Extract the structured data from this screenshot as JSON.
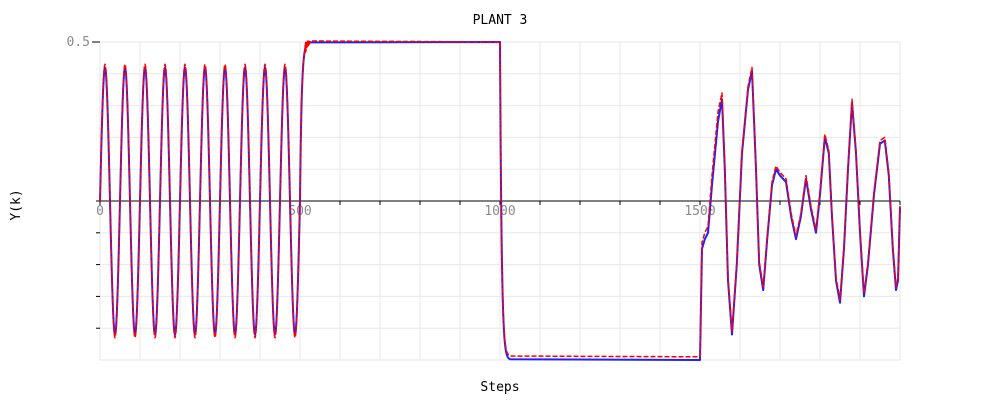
{
  "chart_data": {
    "type": "line",
    "title": "PLANT 3",
    "xlabel": "Steps",
    "ylabel": "Y(k)",
    "xlim": [
      0,
      2000
    ],
    "ylim": [
      -0.5,
      0.5
    ],
    "grid": true,
    "legend": "none",
    "x_ticks": [
      {
        "value": 0,
        "label": "0"
      },
      {
        "value": 500,
        "label": "500"
      },
      {
        "value": 1000,
        "label": "1000"
      },
      {
        "value": 1500,
        "label": "1500"
      }
    ],
    "y_ticks": [
      {
        "value": 0.5,
        "label": "0.5"
      }
    ],
    "series": [
      {
        "color": "#1f1fff",
        "segments": [
          {
            "x_range": [
              0,
              500
            ],
            "kind": "sine",
            "amplitude": 0.42,
            "cycles": 10
          },
          {
            "x_range": [
              500,
              1000
            ],
            "kind": "step",
            "level": 0.5
          },
          {
            "x_range": [
              1000,
              1500
            ],
            "kind": "step",
            "level": -0.5
          },
          {
            "x_range": [
              1500,
              2000
            ],
            "kind": "points",
            "points": [
              [
                1500,
                -0.5
              ],
              [
                1505,
                -0.15
              ],
              [
                1512,
                -0.12
              ],
              [
                1520,
                -0.1
              ],
              [
                1530,
                0.05
              ],
              [
                1545,
                0.25
              ],
              [
                1555,
                0.32
              ],
              [
                1562,
                0.1
              ],
              [
                1570,
                -0.25
              ],
              [
                1580,
                -0.42
              ],
              [
                1592,
                -0.2
              ],
              [
                1605,
                0.15
              ],
              [
                1620,
                0.35
              ],
              [
                1630,
                0.41
              ],
              [
                1640,
                0.1
              ],
              [
                1648,
                -0.2
              ],
              [
                1658,
                -0.28
              ],
              [
                1668,
                -0.12
              ],
              [
                1680,
                0.05
              ],
              [
                1690,
                0.1
              ],
              [
                1700,
                0.08
              ],
              [
                1715,
                0.06
              ],
              [
                1728,
                -0.05
              ],
              [
                1740,
                -0.12
              ],
              [
                1752,
                -0.05
              ],
              [
                1765,
                0.07
              ],
              [
                1778,
                -0.03
              ],
              [
                1790,
                -0.1
              ],
              [
                1800,
                0.02
              ],
              [
                1812,
                0.2
              ],
              [
                1822,
                0.15
              ],
              [
                1830,
                -0.05
              ],
              [
                1840,
                -0.25
              ],
              [
                1850,
                -0.32
              ],
              [
                1860,
                -0.15
              ],
              [
                1870,
                0.1
              ],
              [
                1880,
                0.31
              ],
              [
                1890,
                0.15
              ],
              [
                1900,
                -0.1
              ],
              [
                1910,
                -0.3
              ],
              [
                1920,
                -0.2
              ],
              [
                1935,
                0.02
              ],
              [
                1950,
                0.18
              ],
              [
                1962,
                0.19
              ],
              [
                1972,
                0.08
              ],
              [
                1982,
                -0.15
              ],
              [
                1990,
                -0.28
              ],
              [
                1995,
                -0.25
              ],
              [
                2000,
                -0.02
              ]
            ]
          }
        ]
      },
      {
        "color": "#ff0000",
        "segments": [
          {
            "x_range": [
              0,
              500
            ],
            "kind": "sine",
            "amplitude": 0.43,
            "cycles": 10
          },
          {
            "x_range": [
              500,
              1000
            ],
            "kind": "step",
            "level": 0.5,
            "overshoot": 0.52
          },
          {
            "x_range": [
              1000,
              1500
            ],
            "kind": "step",
            "level": -0.49
          },
          {
            "x_range": [
              1500,
              2000
            ],
            "kind": "points",
            "points": [
              [
                1500,
                -0.49
              ],
              [
                1505,
                -0.13
              ],
              [
                1512,
                -0.1
              ],
              [
                1520,
                -0.08
              ],
              [
                1530,
                0.08
              ],
              [
                1545,
                0.28
              ],
              [
                1555,
                0.34
              ],
              [
                1562,
                0.12
              ],
              [
                1570,
                -0.24
              ],
              [
                1580,
                -0.41
              ],
              [
                1592,
                -0.19
              ],
              [
                1605,
                0.16
              ],
              [
                1620,
                0.36
              ],
              [
                1630,
                0.42
              ],
              [
                1640,
                0.11
              ],
              [
                1648,
                -0.19
              ],
              [
                1658,
                -0.27
              ],
              [
                1668,
                -0.11
              ],
              [
                1680,
                0.06
              ],
              [
                1690,
                0.11
              ],
              [
                1700,
                0.09
              ],
              [
                1715,
                0.07
              ],
              [
                1728,
                -0.04
              ],
              [
                1740,
                -0.11
              ],
              [
                1752,
                -0.04
              ],
              [
                1765,
                0.08
              ],
              [
                1778,
                -0.02
              ],
              [
                1790,
                -0.09
              ],
              [
                1800,
                0.03
              ],
              [
                1812,
                0.21
              ],
              [
                1822,
                0.16
              ],
              [
                1830,
                -0.04
              ],
              [
                1840,
                -0.24
              ],
              [
                1850,
                -0.31
              ],
              [
                1860,
                -0.14
              ],
              [
                1870,
                0.11
              ],
              [
                1880,
                0.32
              ],
              [
                1890,
                0.16
              ],
              [
                1900,
                -0.09
              ],
              [
                1910,
                -0.29
              ],
              [
                1920,
                -0.19
              ],
              [
                1935,
                0.03
              ],
              [
                1950,
                0.19
              ],
              [
                1962,
                0.2
              ],
              [
                1972,
                0.09
              ],
              [
                1982,
                -0.14
              ],
              [
                1990,
                -0.27
              ],
              [
                1995,
                -0.24
              ],
              [
                2000,
                -0.01
              ]
            ]
          }
        ]
      }
    ]
  }
}
